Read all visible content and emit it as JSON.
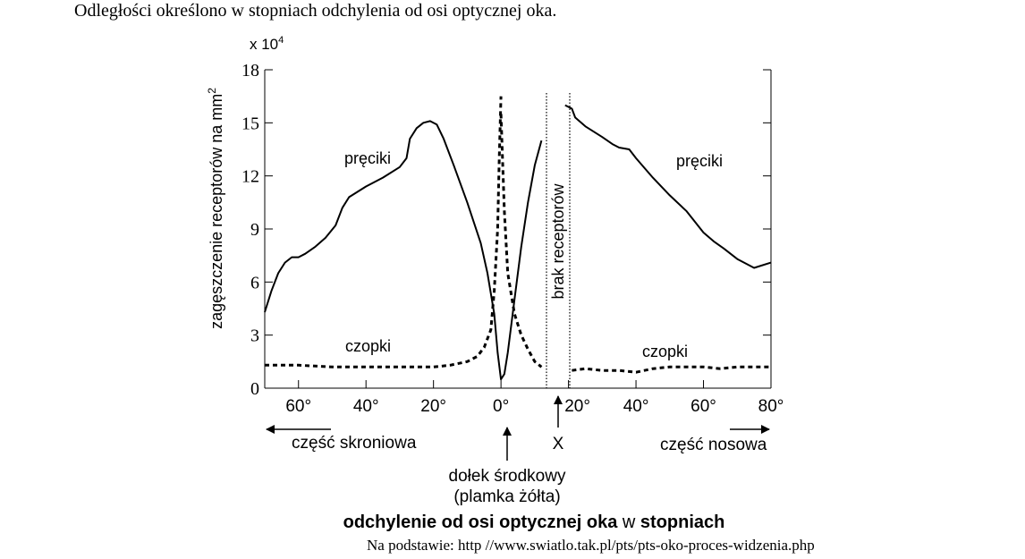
{
  "intro_text": "Odległości określono w stopniach odchylenia od osi optycznej oka.",
  "source_text": "Na podstawie: http //www.swiatlo.tak.pl/pts/pts-oko-proces-widzenia.php",
  "chart_data": {
    "type": "line",
    "title": "",
    "multiplier_label": "x 10",
    "multiplier_exponent": "4",
    "ylabel": "zagęszczenie receptorów na mm",
    "ylabel_superscript": "2",
    "xlabel_part1": "odchylenie od osi optycznej oka",
    "xlabel_part2": " w ",
    "xlabel_part3": "stopniach",
    "ylim": [
      0,
      18
    ],
    "xlim": [
      -70,
      80
    ],
    "y_ticks": [
      0,
      3,
      6,
      9,
      12,
      15,
      18
    ],
    "y_tick_labels": [
      "0",
      "3",
      "6",
      "9",
      "12",
      "15",
      "18"
    ],
    "x_ticks": [
      -60,
      -40,
      -20,
      0,
      20,
      40,
      60,
      80
    ],
    "x_tick_labels": [
      "60°",
      "40°",
      "20°",
      "0°",
      "20°",
      "40°",
      "60°",
      "80°"
    ],
    "blind_spot": {
      "x_range": [
        12,
        19
      ],
      "label": "brak receptorów",
      "marker": "X"
    },
    "annotations": {
      "temporal": "część skroniowa",
      "nasal": "część nosowa",
      "fovea_line1": "dołek środkowy",
      "fovea_line2": "(plamka żółta)"
    },
    "series": [
      {
        "name": "pręciki",
        "style": "solid",
        "segments": [
          [
            [
              -70,
              4.3
            ],
            [
              -68,
              5.5
            ],
            [
              -66,
              6.5
            ],
            [
              -64,
              7.1
            ],
            [
              -62,
              7.4
            ],
            [
              -60,
              7.4
            ],
            [
              -58,
              7.6
            ],
            [
              -55,
              8.0
            ],
            [
              -52,
              8.5
            ],
            [
              -49,
              9.2
            ],
            [
              -47,
              10.2
            ],
            [
              -45,
              10.8
            ],
            [
              -40,
              11.4
            ],
            [
              -35,
              11.9
            ],
            [
              -30,
              12.5
            ],
            [
              -28,
              13.0
            ],
            [
              -27,
              14.1
            ],
            [
              -25,
              14.7
            ],
            [
              -23,
              15.0
            ],
            [
              -21,
              15.1
            ],
            [
              -19,
              14.9
            ],
            [
              -17,
              14.1
            ],
            [
              -14,
              12.6
            ],
            [
              -10,
              10.5
            ],
            [
              -6,
              8.2
            ],
            [
              -4,
              6.5
            ],
            [
              -2,
              4.2
            ],
            [
              -1,
              2.0
            ],
            [
              0,
              0.5
            ],
            [
              1,
              0.8
            ],
            [
              2,
              2.0
            ],
            [
              4,
              5.0
            ],
            [
              6,
              8.0
            ],
            [
              8,
              10.5
            ],
            [
              10,
              12.6
            ],
            [
              12,
              14.0
            ]
          ],
          [
            [
              19,
              16.0
            ],
            [
              21,
              15.8
            ],
            [
              22,
              15.3
            ],
            [
              25,
              14.8
            ],
            [
              30,
              14.2
            ],
            [
              33,
              13.8
            ],
            [
              35,
              13.6
            ],
            [
              38,
              13.5
            ],
            [
              40,
              13.0
            ],
            [
              45,
              11.9
            ],
            [
              50,
              10.9
            ],
            [
              55,
              10.0
            ],
            [
              60,
              8.8
            ],
            [
              63,
              8.3
            ],
            [
              66,
              7.9
            ],
            [
              70,
              7.3
            ],
            [
              75,
              6.8
            ],
            [
              80,
              7.1
            ]
          ]
        ]
      },
      {
        "name": "czopki",
        "style": "dashed",
        "segments": [
          [
            [
              -70,
              1.3
            ],
            [
              -60,
              1.3
            ],
            [
              -50,
              1.2
            ],
            [
              -40,
              1.2
            ],
            [
              -30,
              1.2
            ],
            [
              -20,
              1.2
            ],
            [
              -15,
              1.3
            ],
            [
              -10,
              1.5
            ],
            [
              -7,
              1.8
            ],
            [
              -5,
              2.3
            ],
            [
              -3,
              3.3
            ],
            [
              -2,
              5.5
            ],
            [
              -1,
              9.0
            ],
            [
              -0.5,
              13.0
            ],
            [
              0,
              16.5
            ]
          ],
          [
            [
              0,
              15.5
            ],
            [
              1,
              10.0
            ],
            [
              2,
              6.5
            ],
            [
              4,
              4.2
            ],
            [
              6,
              3.0
            ],
            [
              8,
              2.2
            ],
            [
              10,
              1.5
            ],
            [
              12,
              1.2
            ]
          ],
          [
            [
              21,
              1.0
            ],
            [
              25,
              1.1
            ],
            [
              30,
              1.0
            ],
            [
              35,
              1.0
            ],
            [
              40,
              0.9
            ],
            [
              45,
              1.1
            ],
            [
              50,
              1.2
            ],
            [
              55,
              1.2
            ],
            [
              60,
              1.2
            ],
            [
              65,
              1.1
            ],
            [
              70,
              1.2
            ],
            [
              75,
              1.2
            ],
            [
              80,
              1.2
            ]
          ]
        ]
      }
    ]
  }
}
